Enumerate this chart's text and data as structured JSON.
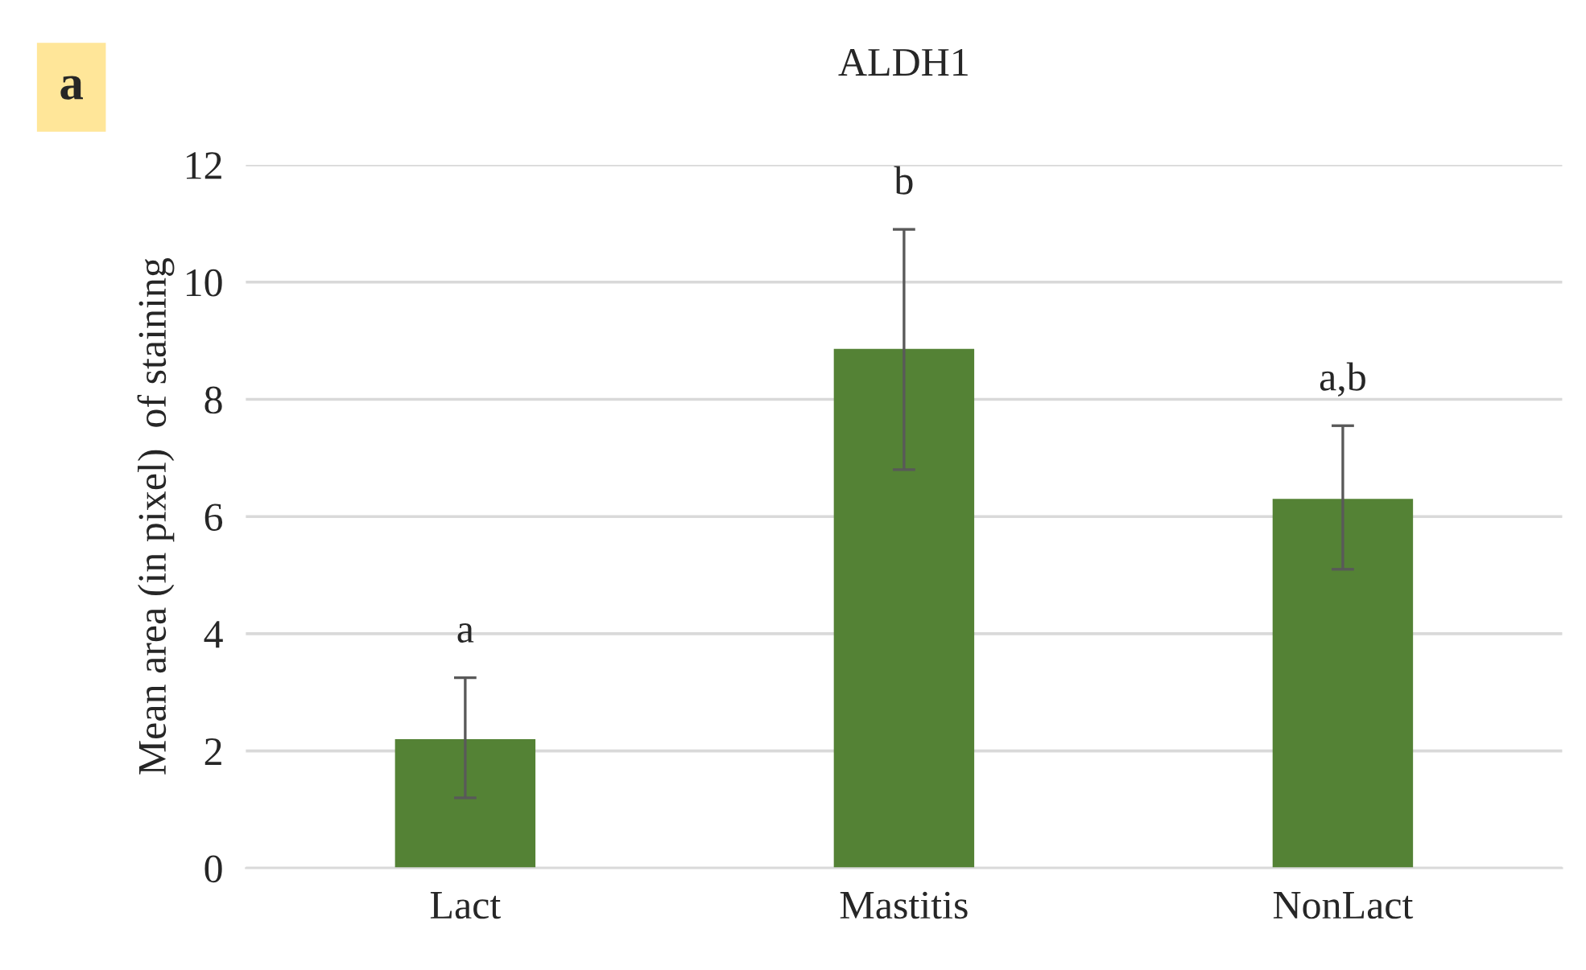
{
  "chart_data": {
    "type": "bar",
    "title": "ALDH1",
    "ylabel": "Mean area (in pixel)  of staining",
    "categories": [
      "Lact",
      "Mastitis",
      "NonLact"
    ],
    "values": [
      2.2,
      8.86,
      6.3
    ],
    "errors": [
      [
        1.2,
        3.25
      ],
      [
        6.8,
        10.9
      ],
      [
        5.1,
        7.55
      ]
    ],
    "color": "#548235",
    "ylim": [
      0,
      12
    ],
    "yticks": [
      0,
      2,
      4,
      6,
      8,
      10,
      12
    ],
    "grid": "y",
    "legend": false,
    "annotations": [
      "a",
      {
        "text": "a",
        "x": "Lact",
        "y": 3.25
      },
      {
        "text": "b",
        "x": "Mastitis",
        "y": 10.9
      },
      {
        "text": "a,b",
        "x": "NonLact",
        "y": 7.55
      }
    ]
  }
}
